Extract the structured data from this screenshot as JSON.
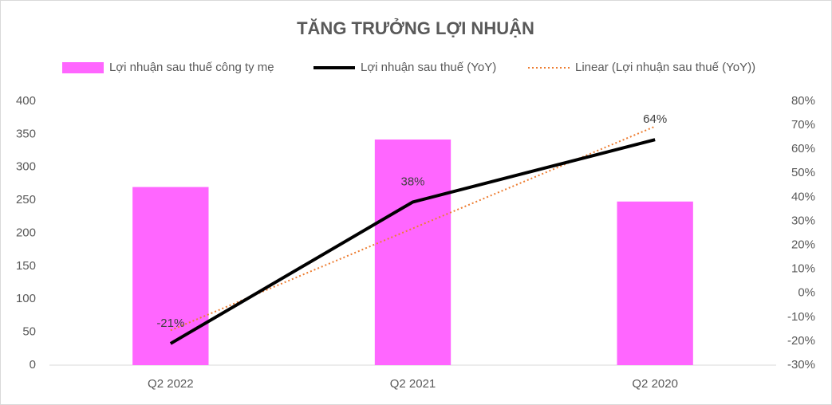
{
  "chart_data": {
    "type": "bar",
    "title": "TĂNG TRƯỞNG LỢI NHUẬN",
    "categories": [
      "Q2 2022",
      "Q2 2021",
      "Q2 2020"
    ],
    "series": [
      {
        "name": "Lợi nhuận sau thuế công ty mẹ",
        "type": "bar",
        "color": "#ff66ff",
        "values": [
          270,
          342,
          248
        ]
      },
      {
        "name": "Lợi nhuận sau thuế (YoY)",
        "type": "line",
        "axis": "y2",
        "color": "#000000",
        "values": [
          -21,
          38,
          64
        ],
        "value_labels": [
          "-21%",
          "38%",
          "64%"
        ]
      },
      {
        "name": "Linear (Lợi nhuận sau thuế (YoY))",
        "type": "trend",
        "axis": "y2",
        "color": "#ed7d31",
        "values": [
          -15.5,
          27,
          69.5
        ]
      }
    ],
    "ylim": [
      0,
      400
    ],
    "yticks": [
      0,
      50,
      100,
      150,
      200,
      250,
      300,
      350,
      400
    ],
    "y2lim": [
      -30,
      80
    ],
    "y2ticks": [
      {
        "value": -30,
        "label": "-30%"
      },
      {
        "value": -20,
        "label": "-20%"
      },
      {
        "value": -10,
        "label": "-10%"
      },
      {
        "value": 0,
        "label": "0%"
      },
      {
        "value": 10,
        "label": "10%"
      },
      {
        "value": 20,
        "label": "20%"
      },
      {
        "value": 30,
        "label": "30%"
      },
      {
        "value": 40,
        "label": "40%"
      },
      {
        "value": 50,
        "label": "50%"
      },
      {
        "value": 60,
        "label": "60%"
      },
      {
        "value": 70,
        "label": "70%"
      },
      {
        "value": 80,
        "label": "80%"
      }
    ],
    "grid": false,
    "legend": "top"
  }
}
